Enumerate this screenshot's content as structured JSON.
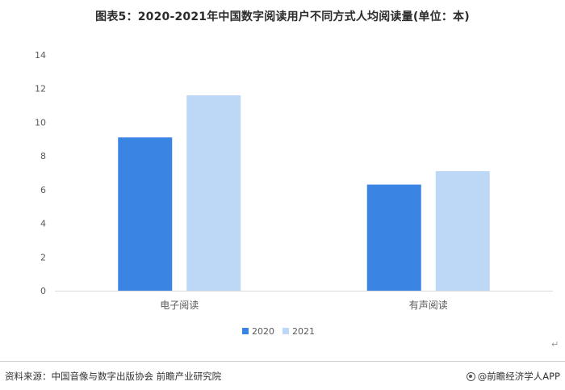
{
  "title": "图表5：2020-2021年中国数字阅读用户不同方式人均阅读量(单位：本)",
  "chart_data": {
    "type": "bar",
    "categories": [
      "电子阅读",
      "有声阅读"
    ],
    "series": [
      {
        "name": "2020",
        "values": [
          9.1,
          6.3
        ],
        "color": "#3a84e3"
      },
      {
        "name": "2021",
        "values": [
          11.6,
          7.1
        ],
        "color": "#bdd7f7"
      }
    ],
    "ylim": [
      0,
      14
    ],
    "yticks": [
      "0",
      "2",
      "4",
      "6",
      "8",
      "10",
      "12",
      "14"
    ],
    "grid": false,
    "legend": "bottom-center"
  },
  "footer": {
    "source": "资料来源：中国音像与数字出版协会 前瞻产业研究院",
    "brand": "@前瞻经济学人APP",
    "brand_icon": "qianzhan-logo-icon",
    "return_icon": "↵"
  }
}
